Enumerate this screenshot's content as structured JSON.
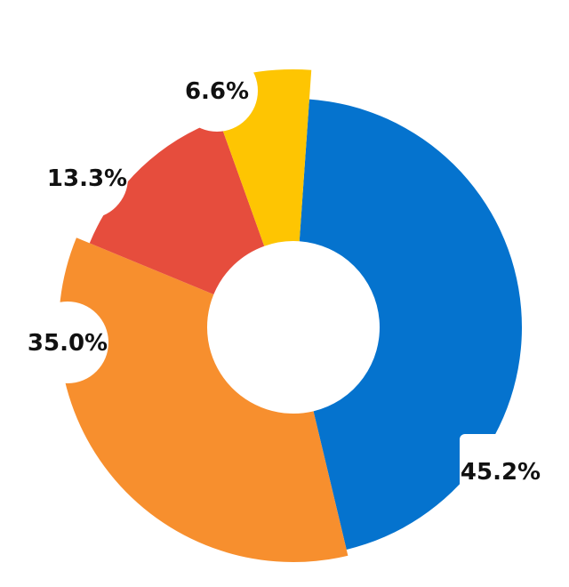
{
  "chart_data": {
    "type": "pie",
    "variant": "donut",
    "title": "",
    "categories": [
      "",
      "",
      "",
      ""
    ],
    "values": [
      45.2,
      35.0,
      13.3,
      6.6
    ],
    "labels": [
      "45.2%",
      "35.0%",
      "13.3%",
      "6.6%"
    ],
    "colors": [
      "#0573CE",
      "#F78F2E",
      "#E64D3D",
      "#FEC502"
    ],
    "legend": false,
    "grid": false
  }
}
